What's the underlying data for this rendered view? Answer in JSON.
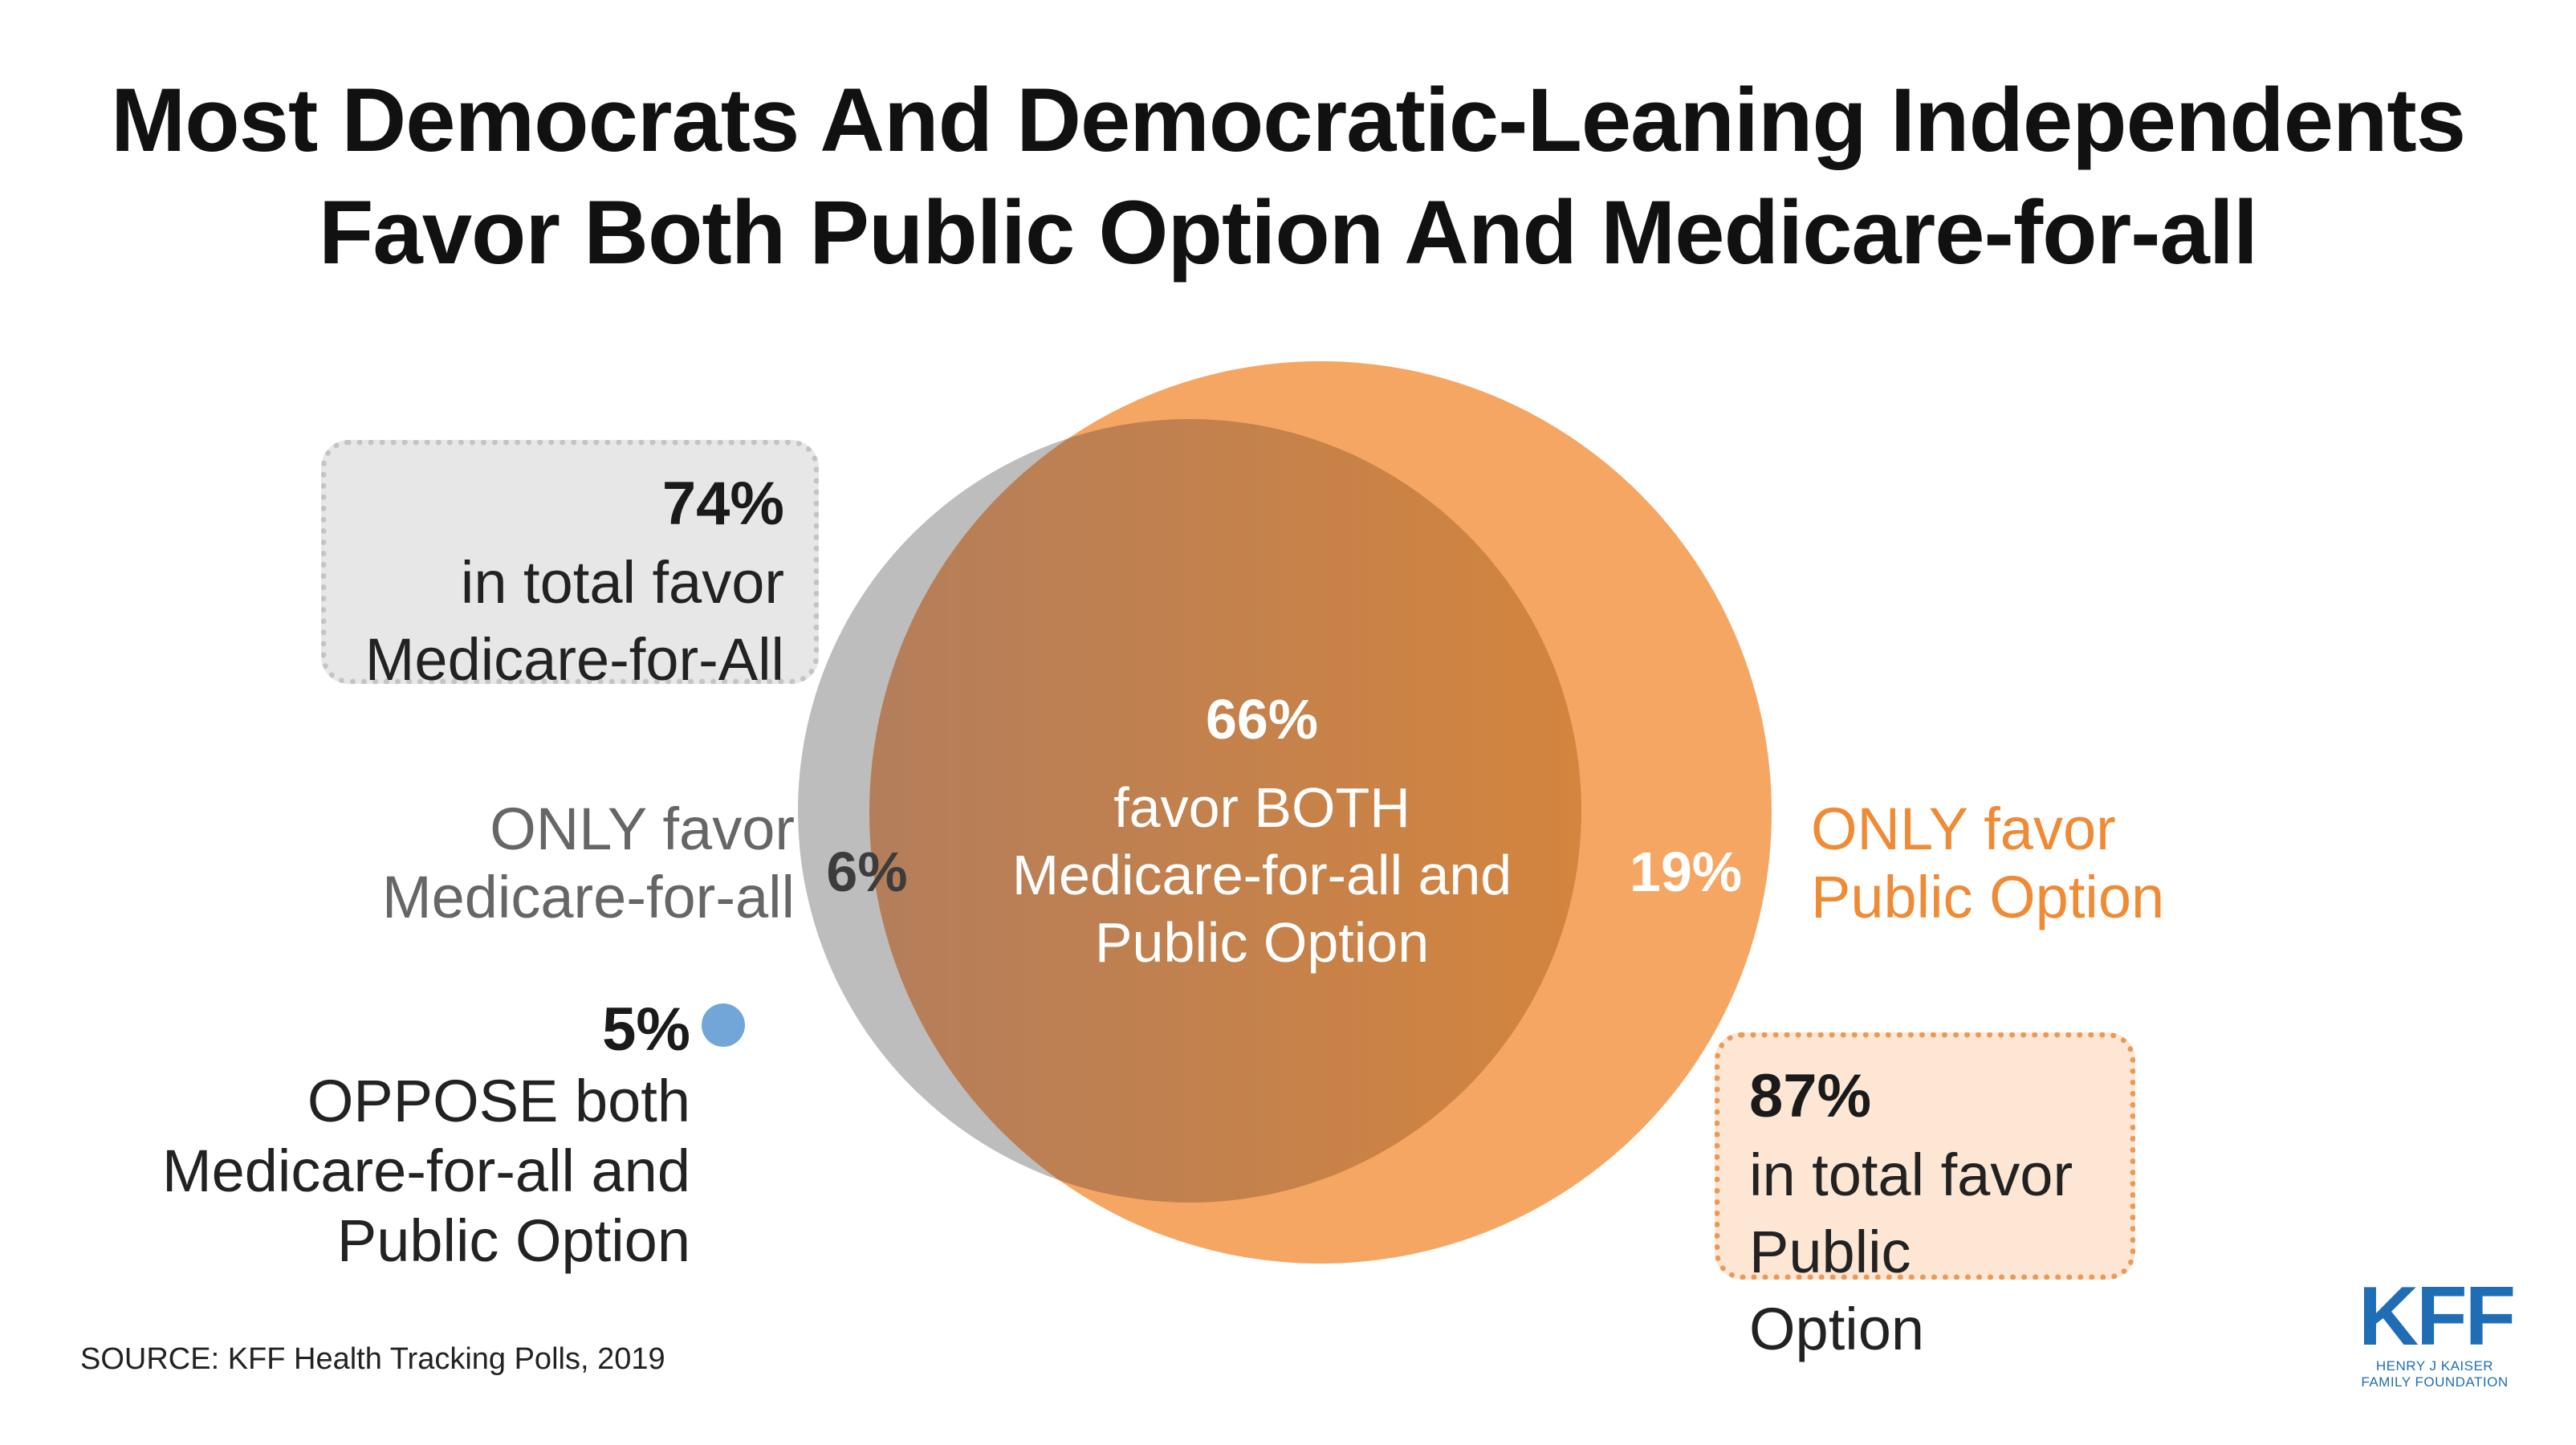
{
  "title": {
    "line1": "Most Democrats And Democratic-Leaning Independents",
    "line2": "Favor Both Public Option And Medicare-for-all"
  },
  "chart_data": {
    "type": "venn",
    "sets": [
      {
        "name": "Medicare-for-all",
        "total_pct": "74%",
        "only_pct": "6%",
        "color": "#bdbdbd"
      },
      {
        "name": "Public Option",
        "total_pct": "87%",
        "only_pct": "19%",
        "color": "#f5a25f"
      }
    ],
    "overlap": {
      "pct": "66%",
      "color": "#c9804a"
    },
    "oppose_both": {
      "pct": "5%",
      "color": "#72a6d9"
    }
  },
  "venn": {
    "overlap_pct": "66%",
    "overlap_text": [
      "favor BOTH",
      "Medicare-for-all and",
      "Public Option"
    ],
    "only_mfa_pct": "6%",
    "only_po_pct": "19%"
  },
  "labels": {
    "only_mfa": [
      "ONLY favor",
      "Medicare-for-all"
    ],
    "only_po": [
      "ONLY favor",
      "Public Option"
    ],
    "mfa_box": {
      "pct": "74%",
      "line1": "in total favor",
      "line2": "Medicare-for-All"
    },
    "po_box": {
      "pct": "87%",
      "line1": "in total favor",
      "line2": "Public Option"
    },
    "oppose": {
      "pct": "5%",
      "line1": "OPPOSE both",
      "line2": "Medicare-for-all and",
      "line3": "Public Option"
    }
  },
  "source": "SOURCE: KFF Health Tracking Polls, 2019",
  "logo": {
    "mark": "KFF",
    "sub1": "HENRY J KAISER",
    "sub2": "FAMILY FOUNDATION"
  }
}
